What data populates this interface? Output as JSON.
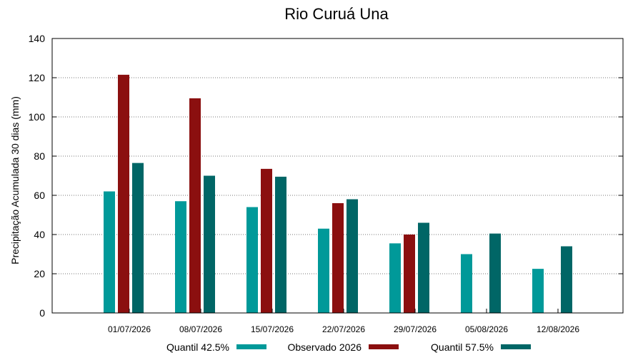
{
  "chart_data": {
    "type": "bar",
    "title": "Rio Curuá Una",
    "xlabel": "",
    "ylabel": "Precipitação Acumulada 30 dias (mm)",
    "ylim": [
      0,
      140
    ],
    "yticks": [
      0,
      20,
      40,
      60,
      80,
      100,
      120,
      140
    ],
    "grid": true,
    "legend_position": "bottom",
    "categories": [
      "01/07/2026",
      "08/07/2026",
      "15/07/2026",
      "22/07/2026",
      "29/07/2026",
      "05/08/2026",
      "12/08/2026"
    ],
    "series": [
      {
        "name": "Quantil 42.5%",
        "color": "#009999",
        "values": [
          62,
          57,
          54,
          43,
          35.5,
          30,
          22.5
        ]
      },
      {
        "name": "Observado 2026",
        "color": "#8b0f0f",
        "values": [
          121.5,
          109.5,
          73.5,
          56,
          40,
          null,
          null
        ]
      },
      {
        "name": "Quantil 57.5%",
        "color": "#006666",
        "values": [
          76.5,
          70,
          69.5,
          58,
          46,
          40.5,
          34
        ]
      }
    ]
  }
}
